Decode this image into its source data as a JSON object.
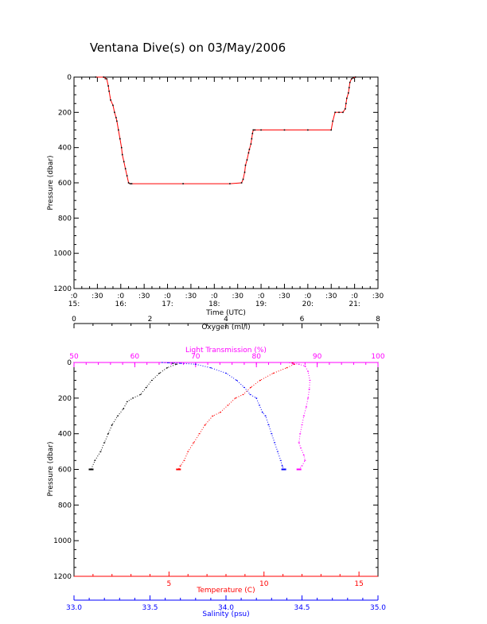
{
  "title": "Ventana Dive(s) on 03/May/2006",
  "colors": {
    "axis": "#000000",
    "temperature": "#ff0000",
    "salinity": "#0000ff",
    "oxygen": "#000000",
    "light": "#ff00ff",
    "track_marker": "#000000",
    "track_line": "#ff0000"
  },
  "chart_data": [
    {
      "type": "line",
      "title": "Ventana Dive(s) on 03/May/2006",
      "xlabel": "Time (UTC)",
      "ylabel": "Pressure (dbar)",
      "x_units": "minutes after 15:00 UTC",
      "xlim": [
        0,
        390
      ],
      "ylim": [
        1200,
        0
      ],
      "x_ticks": [
        {
          "v": 0,
          "top": ":0",
          "bot": "15:"
        },
        {
          "v": 30,
          "top": ":30",
          "bot": ""
        },
        {
          "v": 60,
          "top": ":0",
          "bot": "16:"
        },
        {
          "v": 90,
          "top": ":30",
          "bot": ""
        },
        {
          "v": 120,
          "top": ":0",
          "bot": "17:"
        },
        {
          "v": 150,
          "top": ":30",
          "bot": ""
        },
        {
          "v": 180,
          "top": ":0",
          "bot": "18:"
        },
        {
          "v": 210,
          "top": ":30",
          "bot": ""
        },
        {
          "v": 240,
          "top": ":0",
          "bot": "19:"
        },
        {
          "v": 270,
          "top": ":30",
          "bot": ""
        },
        {
          "v": 300,
          "top": ":0",
          "bot": "20:"
        },
        {
          "v": 330,
          "top": ":30",
          "bot": ""
        },
        {
          "v": 360,
          "top": ":0",
          "bot": "21:"
        },
        {
          "v": 390,
          "top": ":30",
          "bot": ""
        }
      ],
      "y_ticks": [
        0,
        200,
        400,
        600,
        800,
        1000,
        1200
      ],
      "series": [
        {
          "key": "dive",
          "x": [
            28,
            38,
            42,
            44,
            45,
            47,
            50,
            52,
            54,
            55,
            57,
            59,
            61,
            62,
            64,
            66,
            68,
            70,
            72,
            74,
            140,
            200,
            215,
            217,
            219,
            220,
            222,
            224,
            225,
            227,
            228,
            229,
            230,
            232,
            240,
            270,
            300,
            330,
            332,
            335,
            340,
            345,
            348,
            349,
            350,
            352,
            353,
            354,
            356,
            358,
            361
          ],
          "y": [
            0,
            0,
            10,
            50,
            80,
            130,
            160,
            200,
            230,
            250,
            300,
            350,
            400,
            440,
            480,
            520,
            560,
            600,
            605,
            605,
            605,
            605,
            600,
            580,
            540,
            500,
            470,
            430,
            410,
            380,
            350,
            320,
            300,
            300,
            300,
            300,
            300,
            300,
            250,
            200,
            200,
            200,
            180,
            150,
            120,
            90,
            60,
            30,
            10,
            5,
            0
          ]
        }
      ]
    },
    {
      "type": "scatter",
      "ylabel": "Pressure (dbar)",
      "ylim": [
        1200,
        0
      ],
      "y_ticks": [
        0,
        200,
        400,
        600,
        800,
        1000,
        1200
      ],
      "axes": {
        "oxygen": {
          "label": "Oxygen (ml/l)",
          "lim": [
            0,
            8
          ],
          "ticks": [
            0,
            2,
            4,
            6,
            8
          ]
        },
        "light": {
          "label": "Light Transmission (%)",
          "lim": [
            50,
            100
          ],
          "ticks": [
            50,
            60,
            70,
            80,
            90,
            100
          ]
        },
        "temperature": {
          "label": "Temperature (C)",
          "lim": [
            0,
            16
          ],
          "ticks": [
            5,
            10,
            15
          ]
        },
        "salinity": {
          "label": "Salinity (psu)",
          "lim": [
            33.0,
            35.0
          ],
          "ticks": [
            33.0,
            33.5,
            34.0,
            34.5,
            35.0
          ]
        }
      },
      "series": [
        {
          "key": "oxygen",
          "axis": "oxygen",
          "values": [
            2.6,
            2.7,
            2.45,
            2.25,
            2.05,
            1.9,
            1.75,
            1.55,
            1.4,
            1.3,
            1.15,
            1.0,
            0.9,
            0.8,
            0.7,
            0.55,
            0.45
          ],
          "depths": [
            5,
            10,
            30,
            60,
            100,
            140,
            180,
            200,
            220,
            260,
            300,
            350,
            400,
            450,
            500,
            550,
            600
          ]
        },
        {
          "key": "light",
          "axis": "light",
          "values": [
            85,
            86,
            87,
            88,
            88.5,
            88.8,
            88.7,
            88.5,
            88.2,
            87.8,
            87.5,
            87.2,
            87,
            87.3,
            87.8,
            88,
            87.5,
            87
          ],
          "depths": [
            0,
            5,
            10,
            20,
            50,
            100,
            150,
            200,
            250,
            300,
            350,
            400,
            450,
            480,
            520,
            550,
            580,
            600
          ]
        },
        {
          "key": "temperature",
          "axis": "temperature",
          "values": [
            11.5,
            11.6,
            11.2,
            10.5,
            9.8,
            9.3,
            8.9,
            8.5,
            8.1,
            7.7,
            7.3,
            6.9,
            6.6,
            6.3,
            6.0,
            5.8,
            5.6,
            5.5
          ],
          "depths": [
            2,
            10,
            30,
            60,
            100,
            140,
            180,
            200,
            240,
            280,
            300,
            350,
            400,
            450,
            500,
            550,
            580,
            600
          ]
        },
        {
          "key": "salinity",
          "axis": "salinity",
          "values": [
            33.58,
            33.62,
            33.7,
            33.8,
            33.9,
            34.0,
            34.07,
            34.12,
            34.16,
            34.2,
            34.22,
            34.24,
            34.26,
            34.28,
            34.3,
            34.32,
            34.34,
            34.36,
            34.37,
            34.38
          ],
          "depths": [
            0,
            2,
            5,
            10,
            30,
            60,
            100,
            140,
            180,
            200,
            240,
            280,
            300,
            350,
            400,
            450,
            500,
            550,
            580,
            600
          ]
        }
      ]
    }
  ]
}
